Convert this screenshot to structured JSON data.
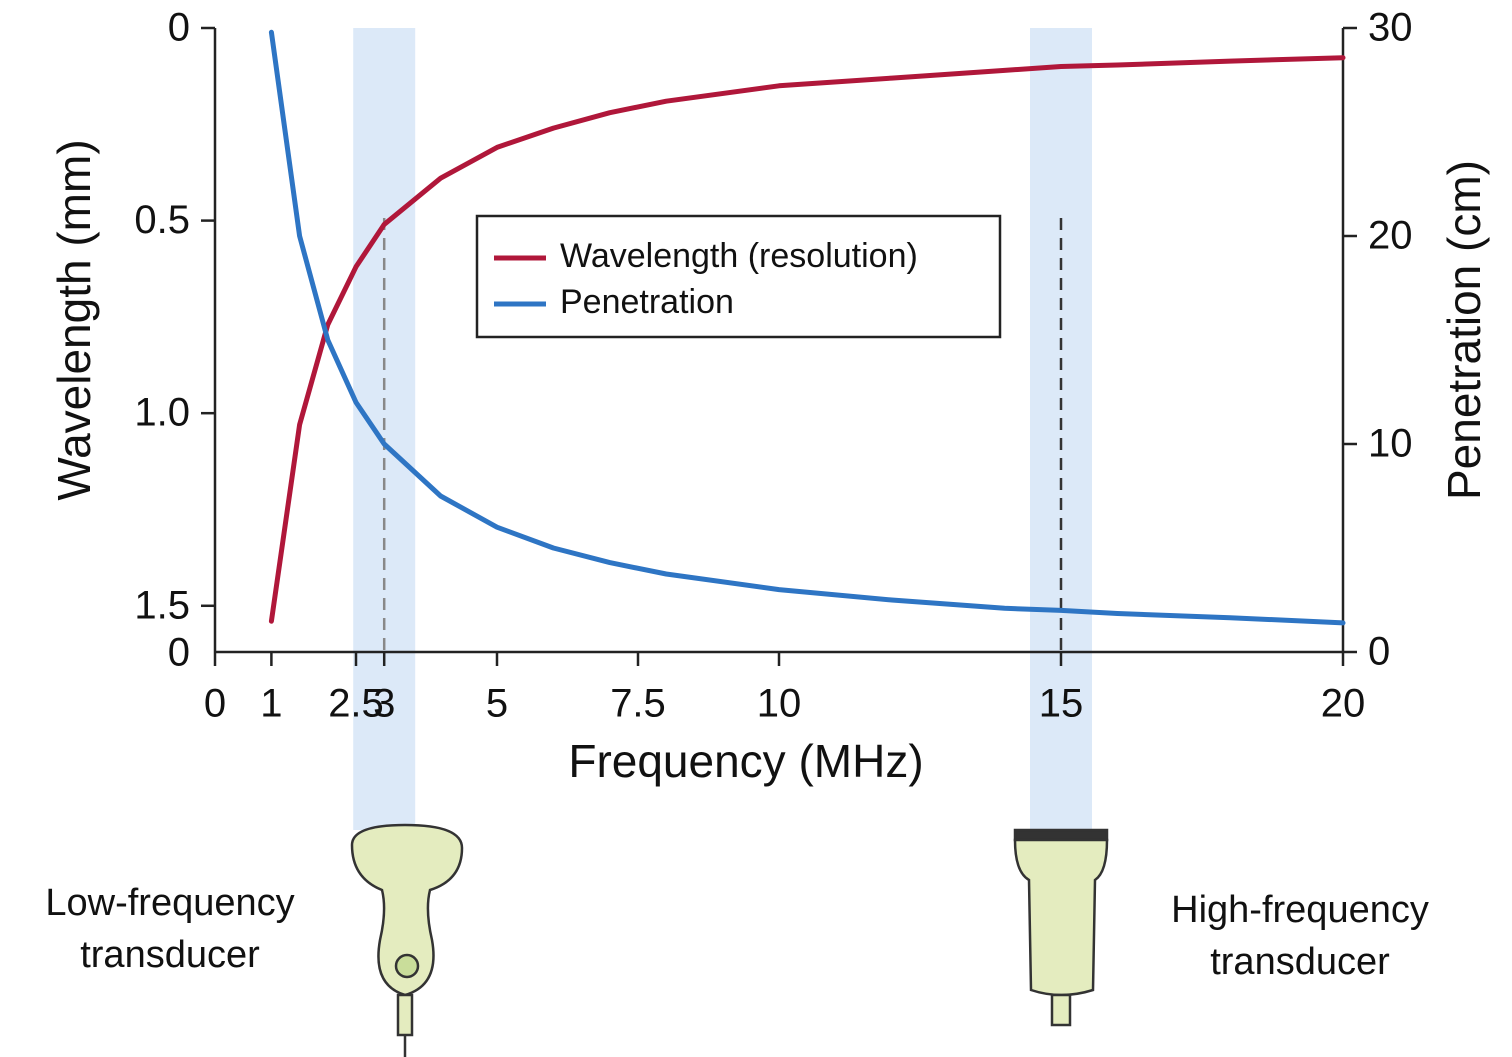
{
  "chart_data": {
    "type": "line",
    "x": [
      1,
      1.5,
      2,
      2.5,
      3,
      4,
      5,
      6,
      7,
      8,
      10,
      12,
      14,
      15,
      16,
      18,
      20
    ],
    "series": [
      {
        "name": "Wavelength (resolution)",
        "color": "#b0173a",
        "axis": "y",
        "values": [
          1.54,
          1.03,
          0.77,
          0.62,
          0.51,
          0.39,
          0.31,
          0.26,
          0.22,
          0.19,
          0.15,
          0.13,
          0.11,
          0.1,
          0.096,
          0.086,
          0.077
        ]
      },
      {
        "name": "Penetration",
        "color": "#2e75c4",
        "axis": "y2",
        "values": [
          29.8,
          20,
          15,
          12,
          10,
          7.5,
          6,
          5,
          4.3,
          3.75,
          3,
          2.5,
          2.1,
          2,
          1.85,
          1.65,
          1.4
        ]
      }
    ],
    "xlabel": "Frequency (MHz)",
    "ylabel": "Wavelength (mm)",
    "y2label": "Penetration (cm)",
    "xlim": [
      0,
      20
    ],
    "xticks": [
      0,
      1,
      2.5,
      3,
      5,
      7.5,
      10,
      15,
      20
    ],
    "ylim": [
      1.62,
      0
    ],
    "yticks": [
      0,
      0.5,
      {
        "value": 1,
        "label": "1.0"
      },
      1.5
    ],
    "y_origin_label": "0",
    "y2lim": [
      0,
      30
    ],
    "y2ticks": [
      0,
      10,
      20,
      30
    ],
    "highlight_x": [
      3,
      15
    ],
    "highlight_color": "#dce9f8",
    "annotations": [
      [
        "Low-frequency",
        "transducer"
      ],
      [
        "High-frequency",
        "transducer"
      ]
    ],
    "legend": "upper center"
  }
}
